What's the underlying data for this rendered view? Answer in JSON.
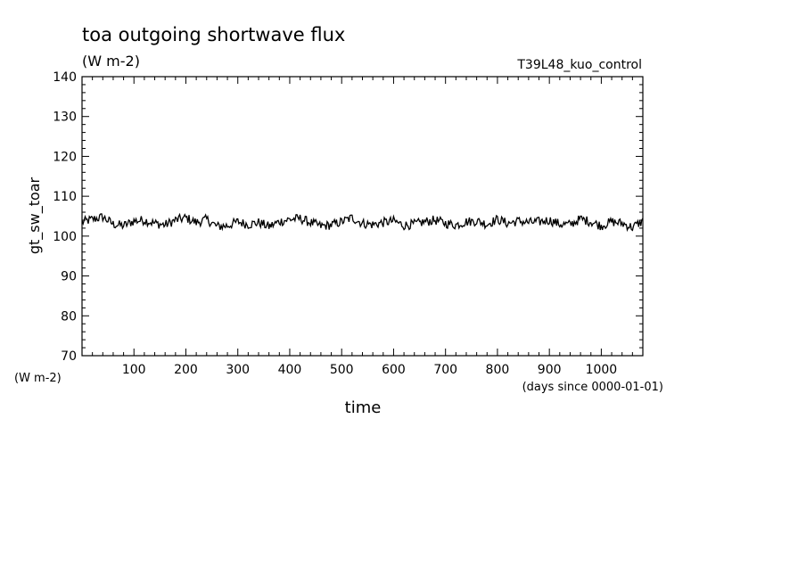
{
  "chart_data": {
    "type": "line",
    "title": "toa outgoing shortwave flux",
    "subtitle": "(W m-2)",
    "run_label": "T39L48_kuo_control",
    "ylabel": "gt_sw_toar",
    "yunit": "(W m-2)",
    "xlabel": "time",
    "xunit": "(days since 0000-01-01)",
    "xlim": [
      0,
      1080
    ],
    "ylim": [
      70,
      140
    ],
    "xticks": [
      100,
      200,
      300,
      400,
      500,
      600,
      700,
      800,
      900,
      1000
    ],
    "yticks": [
      70,
      80,
      90,
      100,
      110,
      120,
      130,
      140
    ],
    "grid": false,
    "series": [
      {
        "x": [
          0,
          20,
          40,
          60,
          80,
          100,
          120,
          140,
          160,
          180,
          200,
          220,
          240,
          260,
          280,
          300,
          320,
          340,
          360,
          380,
          400,
          420,
          440,
          460,
          480,
          500,
          520,
          540,
          560,
          580,
          600,
          620,
          640,
          660,
          680,
          700,
          720,
          740,
          760,
          780,
          800,
          820,
          840,
          860,
          880,
          900,
          920,
          940,
          960,
          980,
          1000,
          1020,
          1040,
          1060,
          1080
        ],
        "y": [
          103.5,
          104.2,
          104.8,
          103.0,
          102.6,
          103.8,
          104.0,
          103.2,
          102.8,
          104.0,
          104.6,
          103.4,
          104.2,
          102.4,
          102.6,
          103.6,
          102.9,
          103.4,
          102.4,
          103.6,
          104.2,
          104.4,
          103.4,
          102.5,
          102.8,
          103.6,
          104.6,
          103.2,
          102.9,
          103.4,
          103.8,
          102.7,
          103.0,
          103.6,
          104.0,
          103.2,
          102.8,
          103.6,
          103.8,
          103.0,
          104.2,
          103.2,
          103.8,
          103.4,
          103.6,
          104.0,
          103.0,
          102.9,
          104.3,
          103.6,
          102.6,
          103.6,
          103.2,
          102.2,
          103.8
        ]
      }
    ]
  }
}
